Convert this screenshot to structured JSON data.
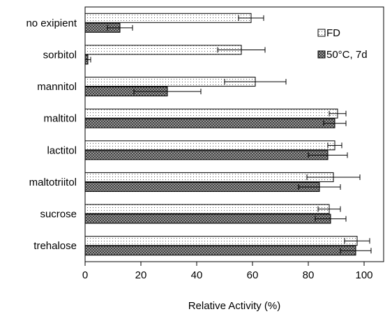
{
  "chart_data": {
    "type": "bar",
    "orientation": "horizontal",
    "categories": [
      "no exipient",
      "sorbitol",
      "mannitol",
      "maltitol",
      "lactitol",
      "maltotriitol",
      "sucrose",
      "trehalose"
    ],
    "series": [
      {
        "name": "FD",
        "pattern": "dots",
        "values": [
          59.5,
          56,
          61,
          90.5,
          89.5,
          89,
          87.5,
          97.5
        ],
        "errors": [
          4.5,
          8.5,
          11,
          3,
          2.5,
          9.5,
          4,
          4.5
        ]
      },
      {
        "name": "50°C, 7d",
        "pattern": "crosshatch",
        "values": [
          12.5,
          1,
          29.5,
          89.5,
          87,
          84,
          88,
          97
        ],
        "errors": [
          4.5,
          1,
          12,
          4,
          7,
          7.5,
          5.5,
          5.5
        ]
      }
    ],
    "xlabel": "Relative Activity (%)",
    "ylabel": "",
    "xlim": [
      0,
      107
    ],
    "xticks": [
      0,
      20,
      40,
      60,
      80,
      100
    ],
    "legend": {
      "position": "top-right"
    },
    "grid": false
  }
}
